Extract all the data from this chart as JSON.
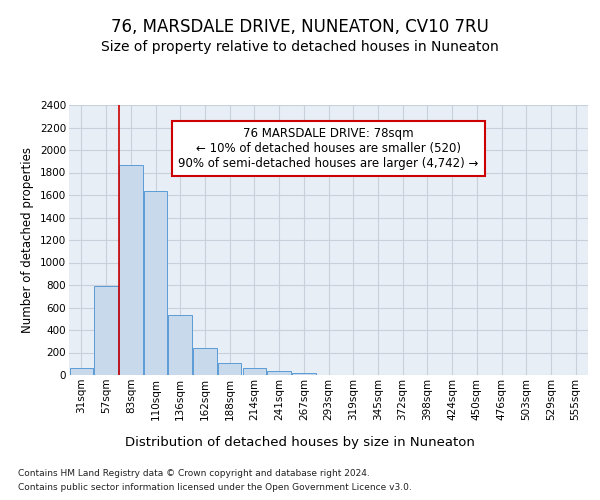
{
  "title": "76, MARSDALE DRIVE, NUNEATON, CV10 7RU",
  "subtitle": "Size of property relative to detached houses in Nuneaton",
  "xlabel": "Distribution of detached houses by size in Nuneaton",
  "ylabel": "Number of detached properties",
  "categories": [
    "31sqm",
    "57sqm",
    "83sqm",
    "110sqm",
    "136sqm",
    "162sqm",
    "188sqm",
    "214sqm",
    "241sqm",
    "267sqm",
    "293sqm",
    "319sqm",
    "345sqm",
    "372sqm",
    "398sqm",
    "424sqm",
    "450sqm",
    "476sqm",
    "503sqm",
    "529sqm",
    "555sqm"
  ],
  "values": [
    60,
    790,
    1870,
    1640,
    530,
    240,
    110,
    60,
    35,
    20,
    0,
    0,
    0,
    0,
    0,
    0,
    0,
    0,
    0,
    0,
    0
  ],
  "bar_color": "#c9d9ec",
  "bar_edge_color": "#5b9bd5",
  "vline_x_idx": 2,
  "vline_color": "#cc0000",
  "annotation_line1": "76 MARSDALE DRIVE: 78sqm",
  "annotation_line2": "← 10% of detached houses are smaller (520)",
  "annotation_line3": "90% of semi-detached houses are larger (4,742) →",
  "annotation_box_color": "#ffffff",
  "annotation_box_edge": "#cc0000",
  "ylim": [
    0,
    2400
  ],
  "yticks": [
    0,
    200,
    400,
    600,
    800,
    1000,
    1200,
    1400,
    1600,
    1800,
    2000,
    2200,
    2400
  ],
  "grid_color": "#c8d0dc",
  "bg_color": "#e8eef6",
  "footer_line1": "Contains HM Land Registry data © Crown copyright and database right 2024.",
  "footer_line2": "Contains public sector information licensed under the Open Government Licence v3.0.",
  "title_fontsize": 12,
  "subtitle_fontsize": 10,
  "ylabel_fontsize": 8.5,
  "xlabel_fontsize": 9.5,
  "tick_fontsize": 7.5,
  "footer_fontsize": 6.5
}
